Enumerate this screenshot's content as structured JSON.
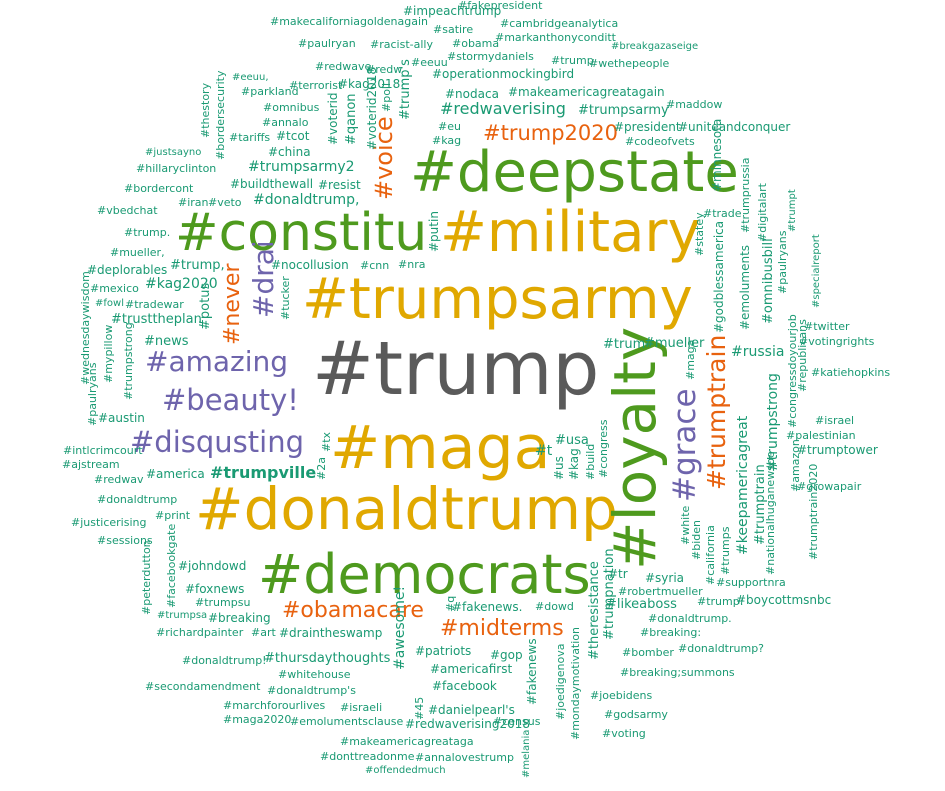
{
  "colors": {
    "gray": "#5a5a5a",
    "gold": "#e0a800",
    "green": "#4e9a1e",
    "purple": "#6e64ac",
    "orange": "#e8620f",
    "teal": "#1a9a73"
  },
  "words": [
    {
      "text": "#trump",
      "color": "gray"
    },
    {
      "text": "#trumpsarmy",
      "color": "gold"
    },
    {
      "text": "#military",
      "color": "gold"
    },
    {
      "text": "#maga",
      "color": "gold"
    },
    {
      "text": "#donaldtrump",
      "color": "gold"
    },
    {
      "text": "#deepstate",
      "color": "green"
    },
    {
      "text": "#constitu",
      "color": "green"
    },
    {
      "text": "#democrats",
      "color": "green"
    },
    {
      "text": "#loyalty",
      "color": "green"
    },
    {
      "text": "#amazing",
      "color": "purple"
    },
    {
      "text": "#beauty!",
      "color": "purple"
    },
    {
      "text": "#disqusting",
      "color": "purple"
    },
    {
      "text": "#grace",
      "color": "purple"
    },
    {
      "text": "#drai",
      "color": "purple"
    },
    {
      "text": "#trump2020",
      "color": "orange"
    },
    {
      "text": "#obamacare",
      "color": "orange"
    },
    {
      "text": "#midterms",
      "color": "orange"
    },
    {
      "text": "#voice",
      "color": "orange"
    },
    {
      "text": "#never",
      "color": "orange"
    },
    {
      "text": "#trumptrain",
      "color": "orange"
    },
    {
      "text": "#trumpville",
      "color": "teal"
    },
    {
      "text": "#fakepresident",
      "color": "teal"
    },
    {
      "text": "#impeachtrump",
      "color": "teal"
    },
    {
      "text": "#makecaliforniagoldenagain",
      "color": "teal"
    },
    {
      "text": "#satire",
      "color": "teal"
    },
    {
      "text": "#cambridgeanalytica",
      "color": "teal"
    },
    {
      "text": "#paulryan",
      "color": "teal"
    },
    {
      "text": "#racist-ally",
      "color": "teal"
    },
    {
      "text": "#obama",
      "color": "teal"
    },
    {
      "text": "#markanthonyconditt",
      "color": "teal"
    },
    {
      "text": "#breakgazaseige",
      "color": "teal"
    },
    {
      "text": "#stormydaniels",
      "color": "teal"
    },
    {
      "text": "#trump",
      "color": "teal"
    },
    {
      "text": "#wethepeople",
      "color": "teal"
    },
    {
      "text": "#redwave",
      "color": "teal"
    },
    {
      "text": "#redw",
      "color": "teal"
    },
    {
      "text": "#eeuu",
      "color": "teal"
    },
    {
      "text": "#operationmockingbird",
      "color": "teal"
    },
    {
      "text": "#eeuu,",
      "color": "teal"
    },
    {
      "text": "#parkland",
      "color": "teal"
    },
    {
      "text": "#terrorist",
      "color": "teal"
    },
    {
      "text": "#kag2018",
      "color": "teal"
    },
    {
      "text": "#nodaca",
      "color": "teal"
    },
    {
      "text": "#makeamericagreatagain",
      "color": "teal"
    },
    {
      "text": "#omnibus",
      "color": "teal"
    },
    {
      "text": "#annalo",
      "color": "teal"
    },
    {
      "text": "#redwaverising",
      "color": "teal"
    },
    {
      "text": "#trumpsarmy",
      "color": "teal"
    },
    {
      "text": "#maddow",
      "color": "teal"
    },
    {
      "text": "#eu",
      "color": "teal"
    },
    {
      "text": "#kag",
      "color": "teal"
    },
    {
      "text": "#president",
      "color": "teal"
    },
    {
      "text": "#uniteandconquer",
      "color": "teal"
    },
    {
      "text": "#tariffs",
      "color": "teal"
    },
    {
      "text": "#tcot",
      "color": "teal"
    },
    {
      "text": "#codeofvets",
      "color": "teal"
    },
    {
      "text": "#china",
      "color": "teal"
    },
    {
      "text": "#justsayno",
      "color": "teal"
    },
    {
      "text": "#hillaryclinton",
      "color": "teal"
    },
    {
      "text": "#trumpsarmy2",
      "color": "teal"
    },
    {
      "text": "#bordercont",
      "color": "teal"
    },
    {
      "text": "#buildthewall",
      "color": "teal"
    },
    {
      "text": "#resist",
      "color": "teal"
    },
    {
      "text": "#iran",
      "color": "teal"
    },
    {
      "text": "#veto",
      "color": "teal"
    },
    {
      "text": "#donaldtrump,",
      "color": "teal"
    },
    {
      "text": "#vbedchat",
      "color": "teal"
    },
    {
      "text": "#trade",
      "color": "teal"
    },
    {
      "text": "#trump.",
      "color": "teal"
    },
    {
      "text": "#mueller,",
      "color": "teal"
    },
    {
      "text": "#deplorables",
      "color": "teal"
    },
    {
      "text": "#trump,",
      "color": "teal"
    },
    {
      "text": "#nocollusion",
      "color": "teal"
    },
    {
      "text": "#cnn",
      "color": "teal"
    },
    {
      "text": "#nra",
      "color": "teal"
    },
    {
      "text": "#mexico",
      "color": "teal"
    },
    {
      "text": "#kag2020",
      "color": "teal"
    },
    {
      "text": "#fowl",
      "color": "teal"
    },
    {
      "text": "#tradewar",
      "color": "teal"
    },
    {
      "text": "#trusttheplan",
      "color": "teal"
    },
    {
      "text": "#twitter",
      "color": "teal"
    },
    {
      "text": "#votingrights",
      "color": "teal"
    },
    {
      "text": "#news",
      "color": "teal"
    },
    {
      "text": "#trum",
      "color": "teal"
    },
    {
      "text": "#mueller",
      "color": "teal"
    },
    {
      "text": "#russia",
      "color": "teal"
    },
    {
      "text": "#katiehopkins",
      "color": "teal"
    },
    {
      "text": "#israel",
      "color": "teal"
    },
    {
      "text": "#austin",
      "color": "teal"
    },
    {
      "text": "#palestinian",
      "color": "teal"
    },
    {
      "text": "#usa",
      "color": "teal"
    },
    {
      "text": "#trumptower",
      "color": "teal"
    },
    {
      "text": "#intlcrimcourt",
      "color": "teal"
    },
    {
      "text": "#t",
      "color": "teal"
    },
    {
      "text": "#ajstream",
      "color": "teal"
    },
    {
      "text": "#america",
      "color": "teal"
    },
    {
      "text": "#redwav",
      "color": "teal"
    },
    {
      "text": "#growapair",
      "color": "teal"
    },
    {
      "text": "#donaldtrump",
      "color": "teal"
    },
    {
      "text": "#print",
      "color": "teal"
    },
    {
      "text": "#justicerising",
      "color": "teal"
    },
    {
      "text": "#sessions",
      "color": "teal"
    },
    {
      "text": "#johndowd",
      "color": "teal"
    },
    {
      "text": "#foxnews",
      "color": "teal"
    },
    {
      "text": "#tr",
      "color": "teal"
    },
    {
      "text": "#syria",
      "color": "teal"
    },
    {
      "text": "#supportnra",
      "color": "teal"
    },
    {
      "text": "#trumpsu",
      "color": "teal"
    },
    {
      "text": "#robertmueller",
      "color": "teal"
    },
    {
      "text": "#fakenews.",
      "color": "teal"
    },
    {
      "text": "#dowd",
      "color": "teal"
    },
    {
      "text": "#likeaboss",
      "color": "teal"
    },
    {
      "text": "#trump:",
      "color": "teal"
    },
    {
      "text": "#boycottmsnbc",
      "color": "teal"
    },
    {
      "text": "#trumpsa",
      "color": "teal"
    },
    {
      "text": "#breaking",
      "color": "teal"
    },
    {
      "text": "#donaldtrump.",
      "color": "teal"
    },
    {
      "text": "#richardpainter",
      "color": "teal"
    },
    {
      "text": "#art",
      "color": "teal"
    },
    {
      "text": "#draintheswamp",
      "color": "teal"
    },
    {
      "text": "#breaking:",
      "color": "teal"
    },
    {
      "text": "#patriots",
      "color": "teal"
    },
    {
      "text": "#gop",
      "color": "teal"
    },
    {
      "text": "#bomber",
      "color": "teal"
    },
    {
      "text": "#donaldtrump?",
      "color": "teal"
    },
    {
      "text": "#donaldtrump!",
      "color": "teal"
    },
    {
      "text": "#thursdaythoughts",
      "color": "teal"
    },
    {
      "text": "#americafirst",
      "color": "teal"
    },
    {
      "text": "#whitehouse",
      "color": "teal"
    },
    {
      "text": "#breaking;summons",
      "color": "teal"
    },
    {
      "text": "#secondamendment",
      "color": "teal"
    },
    {
      "text": "#donaldtrump's",
      "color": "teal"
    },
    {
      "text": "#facebook",
      "color": "teal"
    },
    {
      "text": "#joebidens",
      "color": "teal"
    },
    {
      "text": "#marchforourlives",
      "color": "teal"
    },
    {
      "text": "#israeli",
      "color": "teal"
    },
    {
      "text": "#danielpearl's",
      "color": "teal"
    },
    {
      "text": "#godsarmy",
      "color": "teal"
    },
    {
      "text": "#maga2020",
      "color": "teal"
    },
    {
      "text": "#emolumentsclause",
      "color": "teal"
    },
    {
      "text": "#redwaverising2018",
      "color": "teal"
    },
    {
      "text": "#census",
      "color": "teal"
    },
    {
      "text": "#voting",
      "color": "teal"
    },
    {
      "text": "#makeamericagreataga",
      "color": "teal"
    },
    {
      "text": "#donttreadonme",
      "color": "teal"
    },
    {
      "text": "#annalovestrump",
      "color": "teal"
    },
    {
      "text": "#offendedmuch",
      "color": "teal"
    },
    {
      "text": "#trump's",
      "color": "teal"
    },
    {
      "text": "#poll",
      "color": "teal"
    },
    {
      "text": "#voterid2018",
      "color": "teal"
    },
    {
      "text": "#qanon",
      "color": "teal"
    },
    {
      "text": "#voterid",
      "color": "teal"
    },
    {
      "text": "#thestory",
      "color": "teal"
    },
    {
      "text": "#bordersecurity",
      "color": "teal"
    },
    {
      "text": "#minnesota",
      "color": "teal"
    },
    {
      "text": "#trumprussia",
      "color": "teal"
    },
    {
      "text": "#digitalart",
      "color": "teal"
    },
    {
      "text": "#trumpt",
      "color": "teal"
    },
    {
      "text": "#godblessamerica",
      "color": "teal"
    },
    {
      "text": "#statey",
      "color": "teal"
    },
    {
      "text": "#emoluments",
      "color": "teal"
    },
    {
      "text": "#omnibusbill",
      "color": "teal"
    },
    {
      "text": "#paulryans",
      "color": "teal"
    },
    {
      "text": "#specialreport",
      "color": "teal"
    },
    {
      "text": "#putin",
      "color": "teal"
    },
    {
      "text": "#tucker",
      "color": "teal"
    },
    {
      "text": "#potus",
      "color": "teal"
    },
    {
      "text": "#wednesdaywisdom",
      "color": "teal"
    },
    {
      "text": "#mypillow",
      "color": "teal"
    },
    {
      "text": "#trumpstrong",
      "color": "teal"
    },
    {
      "text": "#paulryans",
      "color": "teal"
    },
    {
      "text": "#maga",
      "color": "teal"
    },
    {
      "text": "#congressdoyourjob",
      "color": "teal"
    },
    {
      "text": "#republicans",
      "color": "teal"
    },
    {
      "text": "#keepamericagreat",
      "color": "teal"
    },
    {
      "text": "#trumptrain",
      "color": "teal"
    },
    {
      "text": "#trumpstrong",
      "color": "teal"
    },
    {
      "text": "#nationalhuganewspe",
      "color": "teal"
    },
    {
      "text": "#amazon",
      "color": "teal"
    },
    {
      "text": "#trumptrain2020",
      "color": "teal"
    },
    {
      "text": "#tx",
      "color": "teal"
    },
    {
      "text": "#2a",
      "color": "teal"
    },
    {
      "text": "#us",
      "color": "teal"
    },
    {
      "text": "#kag",
      "color": "teal"
    },
    {
      "text": "#build",
      "color": "teal"
    },
    {
      "text": "#congress",
      "color": "teal"
    },
    {
      "text": "#white",
      "color": "teal"
    },
    {
      "text": "#biden",
      "color": "teal"
    },
    {
      "text": "#trumps",
      "color": "teal"
    },
    {
      "text": "#california",
      "color": "teal"
    },
    {
      "text": "#facebookgate",
      "color": "teal"
    },
    {
      "text": "#peterdutton",
      "color": "teal"
    },
    {
      "text": "#awesome!",
      "color": "teal"
    },
    {
      "text": "#45",
      "color": "teal"
    },
    {
      "text": "#q",
      "color": "teal"
    },
    {
      "text": "#fakenews",
      "color": "teal"
    },
    {
      "text": "#theresistance",
      "color": "teal"
    },
    {
      "text": "#trumpnation",
      "color": "teal"
    },
    {
      "text": "#joedigenova",
      "color": "teal"
    },
    {
      "text": "#mondaymotivation",
      "color": "teal"
    },
    {
      "text": "#melania",
      "color": "teal"
    }
  ]
}
